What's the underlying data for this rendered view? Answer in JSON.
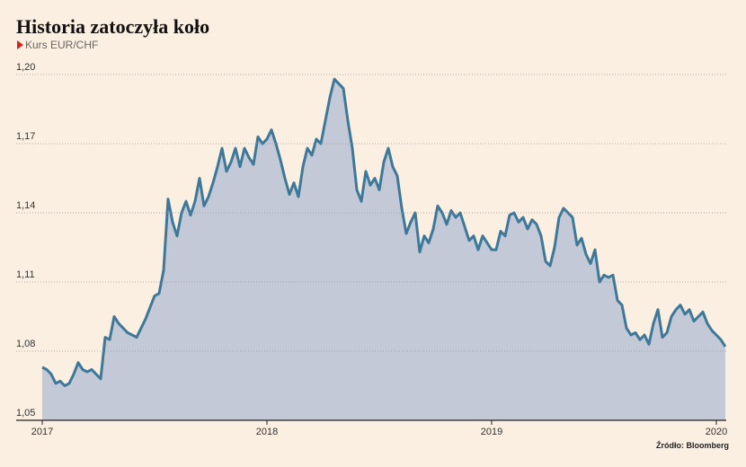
{
  "chart_data": {
    "type": "area",
    "title": "Historia zatoczyła koło",
    "subtitle": "Kurs EUR/CHF",
    "source": "Źródło: Bloomberg",
    "color": "#3d7899",
    "fill": "#c4c9d8",
    "grid": true,
    "xlim": [
      2017,
      2020.04
    ],
    "xticks": [
      2017,
      2018,
      2019,
      2020
    ],
    "ylim": [
      1.05,
      1.2
    ],
    "yticks": [
      {
        "value": 1.05,
        "label": "1,05"
      },
      {
        "value": 1.08,
        "label": "1,08"
      },
      {
        "value": 1.11,
        "label": "1,11"
      },
      {
        "value": 1.14,
        "label": "1,14"
      },
      {
        "value": 1.17,
        "label": "1,17"
      },
      {
        "value": 1.2,
        "label": "1,20"
      }
    ],
    "x": [
      2017,
      2017.02,
      2017.04,
      2017.06,
      2017.08,
      2017.1,
      2017.12,
      2017.14,
      2017.16,
      2017.18,
      2017.2,
      2017.22,
      2017.24,
      2017.26,
      2017.28,
      2017.3,
      2017.32,
      2017.34,
      2017.36,
      2017.38,
      2017.4,
      2017.42,
      2017.44,
      2017.46,
      2017.48,
      2017.5,
      2017.52,
      2017.54,
      2017.56,
      2017.58,
      2017.6,
      2017.62,
      2017.64,
      2017.66,
      2017.68,
      2017.7,
      2017.72,
      2017.74,
      2017.76,
      2017.78,
      2017.8,
      2017.82,
      2017.84,
      2017.86,
      2017.88,
      2017.9,
      2017.92,
      2017.94,
      2017.96,
      2017.98,
      2018,
      2018.02,
      2018.04,
      2018.06,
      2018.08,
      2018.1,
      2018.12,
      2018.14,
      2018.16,
      2018.18,
      2018.2,
      2018.22,
      2018.24,
      2018.26,
      2018.28,
      2018.3,
      2018.32,
      2018.34,
      2018.36,
      2018.38,
      2018.4,
      2018.42,
      2018.44,
      2018.46,
      2018.48,
      2018.5,
      2018.52,
      2018.54,
      2018.56,
      2018.58,
      2018.6,
      2018.62,
      2018.64,
      2018.66,
      2018.68,
      2018.7,
      2018.72,
      2018.74,
      2018.76,
      2018.78,
      2018.8,
      2018.82,
      2018.84,
      2018.86,
      2018.88,
      2018.9,
      2018.92,
      2018.94,
      2018.96,
      2018.98,
      2019,
      2019.02,
      2019.04,
      2019.06,
      2019.08,
      2019.1,
      2019.12,
      2019.14,
      2019.16,
      2019.18,
      2019.2,
      2019.22,
      2019.24,
      2019.26,
      2019.28,
      2019.3,
      2019.32,
      2019.34,
      2019.36,
      2019.38,
      2019.4,
      2019.42,
      2019.44,
      2019.46,
      2019.48,
      2019.5,
      2019.52,
      2019.54,
      2019.56,
      2019.58,
      2019.6,
      2019.62,
      2019.64,
      2019.66,
      2019.68,
      2019.7,
      2019.72,
      2019.74,
      2019.76,
      2019.78,
      2019.8,
      2019.82,
      2019.84,
      2019.86,
      2019.88,
      2019.9,
      2019.92,
      2019.94,
      2019.96,
      2019.98,
      2020,
      2020.02,
      2020.04
    ],
    "values": [
      1.073,
      1.072,
      1.07,
      1.066,
      1.067,
      1.065,
      1.066,
      1.07,
      1.075,
      1.072,
      1.071,
      1.072,
      1.07,
      1.068,
      1.086,
      1.085,
      1.095,
      1.092,
      1.09,
      1.088,
      1.087,
      1.086,
      1.09,
      1.094,
      1.099,
      1.104,
      1.105,
      1.115,
      1.146,
      1.136,
      1.13,
      1.14,
      1.145,
      1.139,
      1.145,
      1.155,
      1.143,
      1.147,
      1.153,
      1.16,
      1.168,
      1.158,
      1.162,
      1.168,
      1.16,
      1.168,
      1.164,
      1.161,
      1.173,
      1.17,
      1.172,
      1.176,
      1.17,
      1.163,
      1.155,
      1.148,
      1.153,
      1.147,
      1.16,
      1.168,
      1.165,
      1.172,
      1.17,
      1.18,
      1.19,
      1.198,
      1.196,
      1.194,
      1.18,
      1.168,
      1.15,
      1.145,
      1.158,
      1.152,
      1.155,
      1.15,
      1.162,
      1.168,
      1.16,
      1.156,
      1.142,
      1.131,
      1.136,
      1.14,
      1.123,
      1.13,
      1.127,
      1.133,
      1.143,
      1.14,
      1.135,
      1.141,
      1.138,
      1.14,
      1.134,
      1.128,
      1.13,
      1.124,
      1.13,
      1.127,
      1.124,
      1.124,
      1.132,
      1.13,
      1.139,
      1.14,
      1.136,
      1.138,
      1.133,
      1.137,
      1.135,
      1.13,
      1.119,
      1.117,
      1.125,
      1.138,
      1.142,
      1.14,
      1.138,
      1.126,
      1.129,
      1.122,
      1.118,
      1.124,
      1.11,
      1.113,
      1.112,
      1.113,
      1.102,
      1.1,
      1.09,
      1.087,
      1.088,
      1.085,
      1.087,
      1.083,
      1.092,
      1.098,
      1.086,
      1.088,
      1.095,
      1.098,
      1.1,
      1.096,
      1.098,
      1.093,
      1.095,
      1.097,
      1.092,
      1.089,
      1.087,
      1.085,
      1.082
    ]
  }
}
